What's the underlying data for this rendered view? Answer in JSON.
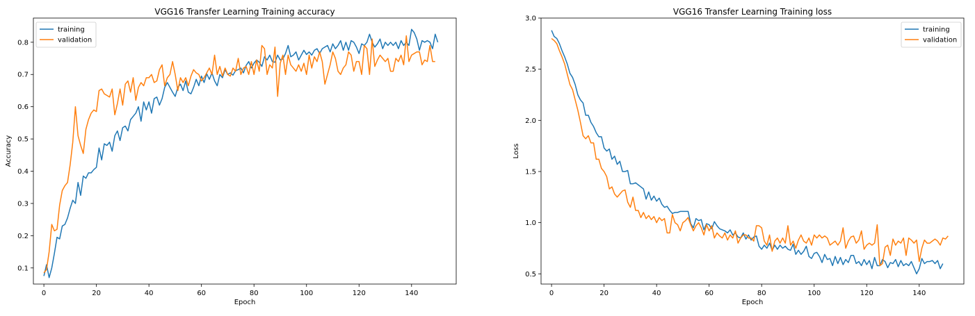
{
  "colors": {
    "training": "#1f77b4",
    "validation": "#ff7f0e"
  },
  "chart_data": [
    {
      "type": "line",
      "title": "VGG16 Transfer Learning Training accuracy",
      "xlabel": "Epoch",
      "ylabel": "Accuracy",
      "xlim": [
        -4,
        157
      ],
      "ylim": [
        0.05,
        0.875
      ],
      "xticks": [
        0,
        20,
        40,
        60,
        80,
        100,
        120,
        140
      ],
      "yticks": [
        0.1,
        0.2,
        0.3,
        0.4,
        0.5,
        0.6,
        0.7,
        0.8
      ],
      "ytick_labels": [
        "0.1",
        "0.2",
        "0.3",
        "0.4",
        "0.5",
        "0.6",
        "0.7",
        "0.8"
      ],
      "legend": "upper-left",
      "series": [
        {
          "name": "training",
          "values": [
            0.075,
            0.11,
            0.07,
            0.1,
            0.145,
            0.195,
            0.19,
            0.23,
            0.235,
            0.255,
            0.285,
            0.31,
            0.3,
            0.365,
            0.325,
            0.385,
            0.378,
            0.395,
            0.395,
            0.405,
            0.412,
            0.472,
            0.435,
            0.485,
            0.48,
            0.49,
            0.462,
            0.51,
            0.525,
            0.495,
            0.535,
            0.54,
            0.525,
            0.56,
            0.57,
            0.58,
            0.6,
            0.555,
            0.615,
            0.59,
            0.615,
            0.58,
            0.625,
            0.63,
            0.605,
            0.625,
            0.66,
            0.675,
            0.66,
            0.645,
            0.632,
            0.66,
            0.67,
            0.65,
            0.68,
            0.645,
            0.64,
            0.66,
            0.685,
            0.665,
            0.695,
            0.675,
            0.702,
            0.685,
            0.705,
            0.68,
            0.665,
            0.7,
            0.69,
            0.715,
            0.7,
            0.705,
            0.698,
            0.712,
            0.715,
            0.72,
            0.705,
            0.728,
            0.74,
            0.72,
            0.735,
            0.745,
            0.738,
            0.725,
            0.755,
            0.745,
            0.76,
            0.74,
            0.738,
            0.76,
            0.745,
            0.748,
            0.765,
            0.79,
            0.755,
            0.76,
            0.77,
            0.745,
            0.76,
            0.775,
            0.762,
            0.77,
            0.76,
            0.775,
            0.78,
            0.765,
            0.78,
            0.785,
            0.79,
            0.77,
            0.795,
            0.78,
            0.79,
            0.805,
            0.775,
            0.8,
            0.775,
            0.805,
            0.8,
            0.785,
            0.765,
            0.795,
            0.79,
            0.8,
            0.825,
            0.8,
            0.785,
            0.795,
            0.81,
            0.78,
            0.8,
            0.79,
            0.8,
            0.79,
            0.8,
            0.78,
            0.805,
            0.79,
            0.8,
            0.79,
            0.84,
            0.83,
            0.81,
            0.775,
            0.805,
            0.8,
            0.805,
            0.8,
            0.78,
            0.825,
            0.8
          ]
        },
        {
          "name": "validation",
          "values": [
            0.085,
            0.095,
            0.15,
            0.235,
            0.215,
            0.22,
            0.295,
            0.34,
            0.355,
            0.365,
            0.42,
            0.49,
            0.6,
            0.51,
            0.48,
            0.455,
            0.53,
            0.56,
            0.58,
            0.59,
            0.585,
            0.65,
            0.655,
            0.64,
            0.635,
            0.63,
            0.655,
            0.575,
            0.61,
            0.655,
            0.605,
            0.67,
            0.68,
            0.645,
            0.69,
            0.62,
            0.66,
            0.675,
            0.665,
            0.69,
            0.69,
            0.7,
            0.675,
            0.68,
            0.715,
            0.73,
            0.665,
            0.69,
            0.7,
            0.74,
            0.7,
            0.65,
            0.69,
            0.675,
            0.69,
            0.665,
            0.695,
            0.715,
            0.705,
            0.7,
            0.68,
            0.69,
            0.705,
            0.72,
            0.7,
            0.76,
            0.7,
            0.725,
            0.695,
            0.72,
            0.7,
            0.695,
            0.72,
            0.71,
            0.75,
            0.7,
            0.72,
            0.725,
            0.7,
            0.74,
            0.7,
            0.745,
            0.71,
            0.79,
            0.78,
            0.7,
            0.73,
            0.72,
            0.785,
            0.632,
            0.735,
            0.76,
            0.7,
            0.76,
            0.73,
            0.72,
            0.71,
            0.73,
            0.71,
            0.735,
            0.7,
            0.76,
            0.72,
            0.755,
            0.74,
            0.77,
            0.74,
            0.67,
            0.7,
            0.73,
            0.77,
            0.75,
            0.71,
            0.7,
            0.72,
            0.73,
            0.77,
            0.76,
            0.71,
            0.74,
            0.74,
            0.7,
            0.79,
            0.78,
            0.7,
            0.81,
            0.725,
            0.745,
            0.76,
            0.75,
            0.74,
            0.75,
            0.71,
            0.71,
            0.75,
            0.74,
            0.76,
            0.73,
            0.82,
            0.74,
            0.76,
            0.765,
            0.77,
            0.77,
            0.73,
            0.745,
            0.74,
            0.79,
            0.74,
            0.74
          ]
        }
      ]
    },
    {
      "type": "line",
      "title": "VGG16 Transfer Learning Training loss",
      "xlabel": "Epoch",
      "ylabel": "Loss",
      "xlim": [
        -4,
        157
      ],
      "ylim": [
        0.4,
        3.0
      ],
      "xticks": [
        0,
        20,
        40,
        60,
        80,
        100,
        120,
        140
      ],
      "yticks": [
        0.5,
        1.0,
        1.5,
        2.0,
        2.5,
        3.0
      ],
      "ytick_labels": [
        "0.5",
        "1.0",
        "1.5",
        "2.0",
        "2.5",
        "3.0"
      ],
      "legend": "upper-right",
      "series": [
        {
          "name": "training",
          "values": [
            2.88,
            2.82,
            2.8,
            2.75,
            2.68,
            2.62,
            2.55,
            2.46,
            2.42,
            2.35,
            2.25,
            2.2,
            2.17,
            2.05,
            2.05,
            1.98,
            1.94,
            1.88,
            1.84,
            1.84,
            1.73,
            1.7,
            1.72,
            1.62,
            1.65,
            1.57,
            1.6,
            1.5,
            1.5,
            1.51,
            1.38,
            1.38,
            1.39,
            1.37,
            1.35,
            1.33,
            1.23,
            1.3,
            1.22,
            1.26,
            1.21,
            1.24,
            1.18,
            1.15,
            1.16,
            1.12,
            1.09,
            1.1,
            1.1,
            1.11,
            1.11,
            1.11,
            1.11,
            0.99,
            0.95,
            1.04,
            1.02,
            1.03,
            0.93,
            0.99,
            0.98,
            0.94,
            1.01,
            0.97,
            0.94,
            0.93,
            0.92,
            0.9,
            0.93,
            0.88,
            0.9,
            0.86,
            0.85,
            0.9,
            0.84,
            0.88,
            0.83,
            0.86,
            0.87,
            0.77,
            0.74,
            0.78,
            0.75,
            0.8,
            0.73,
            0.78,
            0.74,
            0.78,
            0.75,
            0.77,
            0.74,
            0.73,
            0.79,
            0.69,
            0.73,
            0.69,
            0.72,
            0.77,
            0.67,
            0.65,
            0.7,
            0.71,
            0.67,
            0.61,
            0.69,
            0.64,
            0.65,
            0.58,
            0.67,
            0.6,
            0.66,
            0.59,
            0.64,
            0.61,
            0.68,
            0.68,
            0.6,
            0.62,
            0.58,
            0.64,
            0.59,
            0.63,
            0.55,
            0.66,
            0.58,
            0.58,
            0.64,
            0.62,
            0.56,
            0.61,
            0.6,
            0.64,
            0.57,
            0.63,
            0.58,
            0.6,
            0.58,
            0.62,
            0.56,
            0.5,
            0.55,
            0.65,
            0.6,
            0.62,
            0.62,
            0.63,
            0.6,
            0.63,
            0.55,
            0.6
          ]
        },
        {
          "name": "validation",
          "values": [
            2.8,
            2.78,
            2.75,
            2.68,
            2.62,
            2.55,
            2.45,
            2.35,
            2.3,
            2.2,
            2.1,
            1.98,
            1.85,
            1.82,
            1.85,
            1.78,
            1.78,
            1.62,
            1.62,
            1.53,
            1.5,
            1.45,
            1.33,
            1.35,
            1.28,
            1.25,
            1.28,
            1.31,
            1.32,
            1.2,
            1.15,
            1.25,
            1.12,
            1.12,
            1.05,
            1.1,
            1.04,
            1.07,
            1.03,
            1.06,
            1.0,
            1.05,
            1.02,
            1.04,
            0.9,
            0.9,
            1.08,
            1.0,
            0.98,
            0.92,
            1.0,
            1.02,
            1.05,
            0.98,
            0.92,
            0.97,
            1.0,
            0.95,
            0.88,
            0.98,
            0.92,
            0.97,
            0.85,
            0.9,
            0.87,
            0.85,
            0.9,
            0.83,
            0.88,
            0.85,
            0.92,
            0.8,
            0.85,
            0.88,
            0.88,
            0.85,
            0.85,
            0.82,
            0.97,
            0.97,
            0.95,
            0.82,
            0.78,
            0.88,
            0.72,
            0.82,
            0.85,
            0.8,
            0.85,
            0.8,
            0.97,
            0.78,
            0.82,
            0.75,
            0.83,
            0.88,
            0.82,
            0.8,
            0.85,
            0.78,
            0.88,
            0.85,
            0.88,
            0.85,
            0.87,
            0.85,
            0.78,
            0.8,
            0.82,
            0.78,
            0.82,
            0.95,
            0.75,
            0.82,
            0.86,
            0.87,
            0.8,
            0.83,
            0.92,
            0.74,
            0.78,
            0.8,
            0.78,
            0.8,
            0.98,
            0.58,
            0.6,
            0.76,
            0.78,
            0.68,
            0.84,
            0.78,
            0.82,
            0.8,
            0.85,
            0.68,
            0.85,
            0.83,
            0.8,
            0.83,
            0.62,
            0.75,
            0.83,
            0.8,
            0.8,
            0.82,
            0.84,
            0.82,
            0.78,
            0.85,
            0.84,
            0.87
          ]
        }
      ]
    }
  ]
}
